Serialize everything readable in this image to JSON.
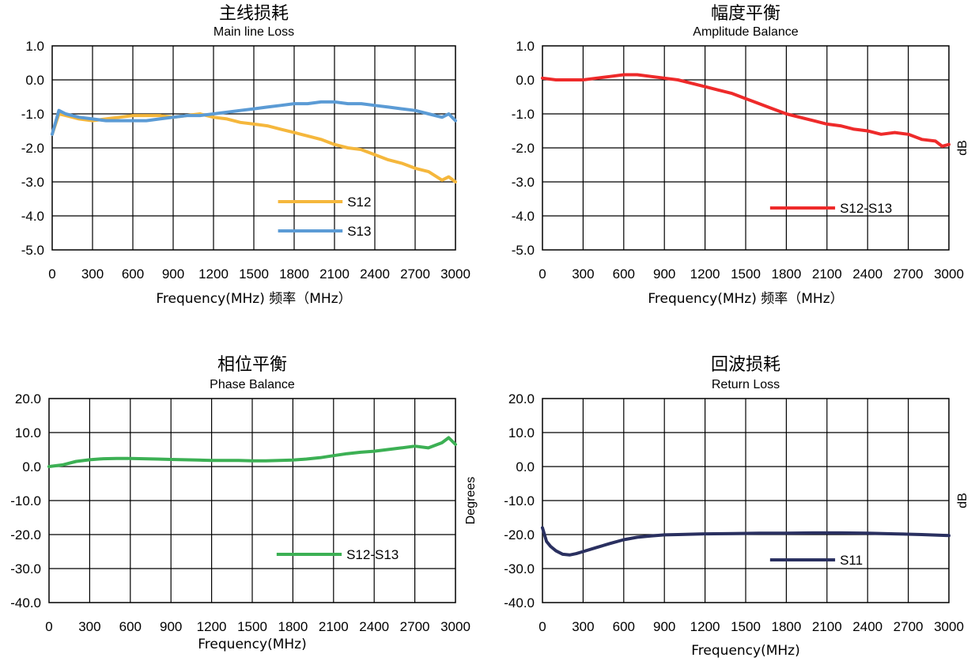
{
  "chart_data": [
    {
      "type": "line",
      "title": "主线损耗",
      "subtitle": "Main line Loss",
      "xlabel": "Frequency(MHz) 频率（MHz）",
      "ylabel": "",
      "xlim": [
        0,
        3000
      ],
      "ylim": [
        -5.0,
        1.0
      ],
      "x_ticks": [
        "0",
        "300",
        "600",
        "900",
        "1200",
        "1500",
        "1800",
        "2100",
        "2400",
        "2700",
        "3000"
      ],
      "y_ticks": [
        "1.0",
        "0.0",
        "-1.0",
        "-2.0",
        "-3.0",
        "-4.0",
        "-5.0"
      ],
      "grid": true,
      "legend_position": "bottom-right",
      "series": [
        {
          "name": "S12",
          "color": "#f5b73c",
          "x": [
            0,
            50,
            100,
            200,
            300,
            400,
            500,
            600,
            700,
            800,
            900,
            1000,
            1100,
            1200,
            1300,
            1400,
            1500,
            1600,
            1700,
            1800,
            1900,
            2000,
            2100,
            2200,
            2300,
            2400,
            2500,
            2600,
            2700,
            2800,
            2900,
            2950,
            3000
          ],
          "y": [
            -1.6,
            -1.0,
            -1.05,
            -1.15,
            -1.2,
            -1.15,
            -1.1,
            -1.05,
            -1.05,
            -1.05,
            -1.1,
            -1.05,
            -1.0,
            -1.1,
            -1.15,
            -1.25,
            -1.3,
            -1.35,
            -1.45,
            -1.55,
            -1.65,
            -1.75,
            -1.9,
            -2.0,
            -2.05,
            -2.2,
            -2.35,
            -2.45,
            -2.6,
            -2.7,
            -2.95,
            -2.85,
            -3.0
          ]
        },
        {
          "name": "S13",
          "color": "#5b9bd5",
          "x": [
            0,
            50,
            100,
            200,
            300,
            400,
            500,
            600,
            700,
            800,
            900,
            1000,
            1100,
            1200,
            1300,
            1400,
            1500,
            1600,
            1700,
            1800,
            1900,
            2000,
            2100,
            2200,
            2300,
            2400,
            2500,
            2600,
            2700,
            2800,
            2900,
            2950,
            3000
          ],
          "y": [
            -1.6,
            -0.9,
            -1.0,
            -1.1,
            -1.15,
            -1.2,
            -1.2,
            -1.2,
            -1.2,
            -1.15,
            -1.1,
            -1.05,
            -1.05,
            -1.0,
            -0.95,
            -0.9,
            -0.85,
            -0.8,
            -0.75,
            -0.7,
            -0.7,
            -0.65,
            -0.65,
            -0.7,
            -0.7,
            -0.75,
            -0.8,
            -0.85,
            -0.9,
            -1.0,
            -1.1,
            -1.0,
            -1.2
          ]
        }
      ]
    },
    {
      "type": "line",
      "title": "幅度平衡",
      "subtitle": "Amplitude Balance",
      "xlabel": "Frequency(MHz) 频率（MHz）",
      "ylabel": "dB",
      "xlim": [
        0,
        3000
      ],
      "ylim": [
        -5.0,
        1.0
      ],
      "x_ticks": [
        "0",
        "300",
        "600",
        "900",
        "1200",
        "1500",
        "1800",
        "2100",
        "2400",
        "2700",
        "3000"
      ],
      "y_ticks": [
        "1.0",
        "0.0",
        "-1.0",
        "-2.0",
        "-3.0",
        "-4.0",
        "-5.0"
      ],
      "grid": true,
      "legend_position": "bottom-right",
      "series": [
        {
          "name": "S12-S13",
          "color": "#ee2a2a",
          "x": [
            0,
            100,
            200,
            300,
            400,
            500,
            600,
            700,
            800,
            900,
            1000,
            1100,
            1200,
            1300,
            1400,
            1500,
            1600,
            1700,
            1800,
            1900,
            2000,
            2100,
            2200,
            2300,
            2400,
            2500,
            2600,
            2700,
            2800,
            2900,
            2950,
            3000
          ],
          "y": [
            0.05,
            0.0,
            0.0,
            0.0,
            0.05,
            0.1,
            0.15,
            0.15,
            0.1,
            0.05,
            0.0,
            -0.1,
            -0.2,
            -0.3,
            -0.4,
            -0.55,
            -0.7,
            -0.85,
            -1.0,
            -1.1,
            -1.2,
            -1.3,
            -1.35,
            -1.45,
            -1.5,
            -1.6,
            -1.55,
            -1.6,
            -1.75,
            -1.8,
            -1.95,
            -1.9
          ]
        }
      ]
    },
    {
      "type": "line",
      "title": "相位平衡",
      "subtitle": "Phase Balance",
      "xlabel": "Frequency(MHz)",
      "ylabel": "Degrees",
      "xlim": [
        0,
        3000
      ],
      "ylim": [
        -40.0,
        20.0
      ],
      "x_ticks": [
        "0",
        "300",
        "600",
        "900",
        "1200",
        "1500",
        "1800",
        "2100",
        "2400",
        "2700",
        "3000"
      ],
      "y_ticks": [
        "20.0",
        "10.0",
        "0.0",
        "-10.0",
        "-20.0",
        "-30.0",
        "-40.0"
      ],
      "grid": true,
      "legend_position": "bottom-right",
      "series": [
        {
          "name": "S12-S13",
          "color": "#3cb054",
          "x": [
            0,
            100,
            200,
            300,
            400,
            500,
            600,
            700,
            800,
            900,
            1000,
            1100,
            1200,
            1300,
            1400,
            1500,
            1600,
            1700,
            1800,
            1900,
            2000,
            2100,
            2200,
            2300,
            2400,
            2500,
            2600,
            2700,
            2800,
            2900,
            2950,
            3000
          ],
          "y": [
            0.0,
            0.5,
            1.5,
            2.0,
            2.3,
            2.4,
            2.4,
            2.3,
            2.2,
            2.1,
            2.0,
            1.9,
            1.8,
            1.8,
            1.8,
            1.7,
            1.7,
            1.8,
            1.9,
            2.2,
            2.6,
            3.2,
            3.8,
            4.2,
            4.5,
            5.0,
            5.5,
            6.0,
            5.5,
            7.0,
            8.5,
            6.5
          ]
        }
      ]
    },
    {
      "type": "line",
      "title": "回波损耗",
      "subtitle": "Return Loss",
      "xlabel": "Frequency(MHz)",
      "ylabel": "dB",
      "xlim": [
        0,
        3000
      ],
      "ylim": [
        -40.0,
        20.0
      ],
      "x_ticks": [
        "0",
        "300",
        "600",
        "900",
        "1200",
        "1500",
        "1800",
        "2100",
        "2400",
        "2700",
        "3000"
      ],
      "y_ticks": [
        "20.0",
        "10.0",
        "0.0",
        "-10.0",
        "-20.0",
        "-30.0",
        "-40.0"
      ],
      "grid": true,
      "legend_position": "bottom-right",
      "series": [
        {
          "name": "S11",
          "color": "#2a3060",
          "x": [
            0,
            30,
            60,
            100,
            150,
            200,
            250,
            300,
            400,
            500,
            600,
            700,
            800,
            900,
            1000,
            1200,
            1400,
            1600,
            1800,
            2000,
            2200,
            2400,
            2600,
            2800,
            3000
          ],
          "y": [
            -18.0,
            -22.0,
            -23.5,
            -24.8,
            -25.8,
            -26.0,
            -25.6,
            -25.0,
            -23.8,
            -22.6,
            -21.5,
            -20.8,
            -20.4,
            -20.1,
            -20.0,
            -19.8,
            -19.7,
            -19.6,
            -19.6,
            -19.5,
            -19.5,
            -19.6,
            -19.8,
            -20.0,
            -20.3
          ]
        }
      ]
    }
  ]
}
